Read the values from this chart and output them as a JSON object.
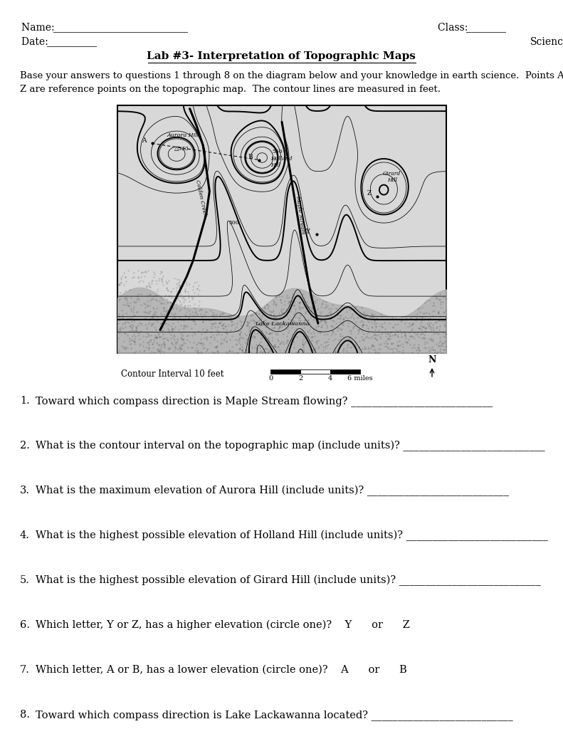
{
  "title": "Lab #3- Interpretation of Topographic Maps",
  "name_label": "Name: ",
  "name_line": "___________________________",
  "date_label": "Date: ",
  "date_line": "__________",
  "class_label": "Class: ",
  "class_line": "________",
  "science_label": "Science",
  "intro_text": "Base your answers to questions 1 through 8 on the diagram below and your knowledge in earth science.  Points A, D, Y, and\nZ are reference points on the topographic map.  The contour lines are measured in feet.",
  "contour_label": "Contour Interval 10 feet",
  "north_label": "N",
  "map_bg": "#d8d8d8",
  "questions": [
    "Toward which compass direction is Maple Stream flowing? ___________________________",
    "What is the contour interval on the topographic map (include units)? ___________________________",
    "What is the maximum elevation of Aurora Hill (include units)? ___________________________",
    "What is the highest possible elevation of Holland Hill (include units)? ___________________________",
    "What is the highest possible elevation of Girard Hill (include units)? ___________________________",
    "Which letter, Y or Z, has a higher elevation (circle one)?    Y      or      Z",
    "Which letter, A or B, has a lower elevation (circle one)?    A      or      B",
    "Toward which compass direction is Lake Lackawanna located? ___________________________"
  ]
}
